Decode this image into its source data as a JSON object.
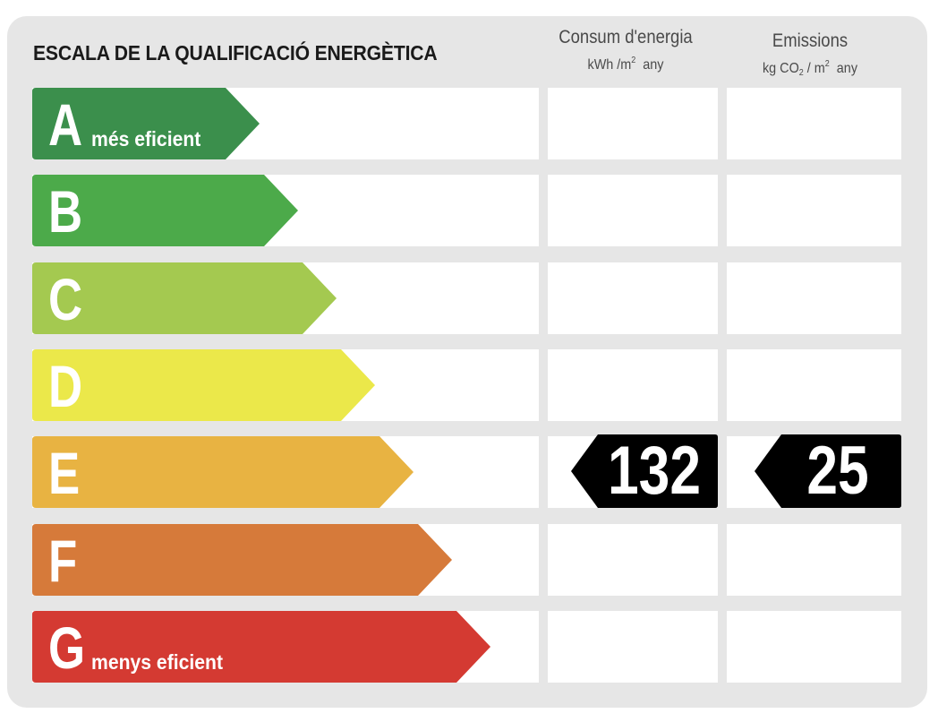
{
  "title": "ESCALA DE LA QUALIFICACIÓ ENERGÈTICA",
  "columns": {
    "consum": {
      "label": "Consum d'energia",
      "unit_prefix": "kWh /m",
      "unit_exp": "2",
      "unit_suffix": "any"
    },
    "emissions": {
      "label": "Emissions",
      "unit_prefix": "kg CO",
      "unit_sub": "2",
      "unit_mid": " / m",
      "unit_exp": "2",
      "unit_suffix": "any"
    }
  },
  "classes": [
    {
      "letter": "A",
      "label": "més eficient",
      "color": "#3b8f4c"
    },
    {
      "letter": "B",
      "label": "",
      "color": "#4caa4a"
    },
    {
      "letter": "C",
      "label": "",
      "color": "#a4c950"
    },
    {
      "letter": "D",
      "label": "",
      "color": "#ebe84a"
    },
    {
      "letter": "E",
      "label": "",
      "color": "#e8b342"
    },
    {
      "letter": "F",
      "label": "",
      "color": "#d67a3a"
    },
    {
      "letter": "G",
      "label": "menys eficient",
      "color": "#d43a32"
    }
  ],
  "rating": {
    "class": "E",
    "consum_value": "132",
    "emissions_value": "25",
    "badge_color": "#000000"
  }
}
